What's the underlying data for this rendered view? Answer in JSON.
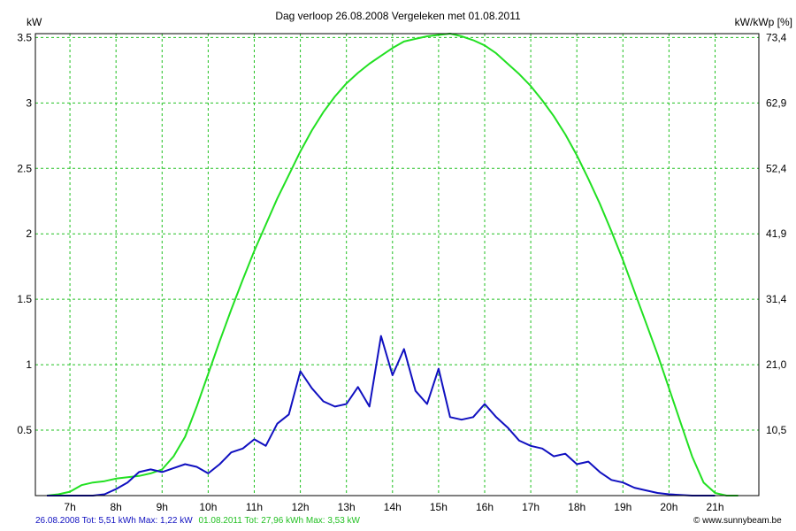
{
  "chart_data": {
    "type": "line",
    "title": "Dag  verloop 26.08.2008   Vergeleken met 01.08.2011",
    "ylabel_left": "kW",
    "ylabel_right": "kW/kWp [%]",
    "x_ticks": [
      "7h",
      "8h",
      "9h",
      "10h",
      "11h",
      "12h",
      "13h",
      "14h",
      "15h",
      "16h",
      "17h",
      "18h",
      "19h",
      "20h",
      "21h"
    ],
    "x_tick_values": [
      7,
      8,
      9,
      10,
      11,
      12,
      13,
      14,
      15,
      16,
      17,
      18,
      19,
      20,
      21
    ],
    "xlim": [
      6.25,
      21.95
    ],
    "y_ticks_left": [
      "0.5",
      "1",
      "1.5",
      "2",
      "2.5",
      "3",
      "3.5"
    ],
    "y_tick_values_left": [
      0.5,
      1,
      1.5,
      2,
      2.5,
      3,
      3.5
    ],
    "y_ticks_right": [
      "10,5",
      "21,0",
      "31,4",
      "41,9",
      "52,4",
      "62,9",
      "73,4"
    ],
    "ylim": [
      0,
      3.53
    ],
    "grid": true,
    "series": [
      {
        "name": "01.08.2011",
        "color": "#22e022",
        "x": [
          6.5,
          6.75,
          7.0,
          7.25,
          7.5,
          7.75,
          8.0,
          8.25,
          8.5,
          8.75,
          9.0,
          9.25,
          9.5,
          9.75,
          10.0,
          10.25,
          10.5,
          10.75,
          11.0,
          11.25,
          11.5,
          11.75,
          12.0,
          12.25,
          12.5,
          12.75,
          13.0,
          13.25,
          13.5,
          13.75,
          14.0,
          14.25,
          14.5,
          14.75,
          15.0,
          15.25,
          15.5,
          15.75,
          16.0,
          16.25,
          16.5,
          16.75,
          17.0,
          17.25,
          17.5,
          17.75,
          18.0,
          18.25,
          18.5,
          18.75,
          19.0,
          19.25,
          19.5,
          19.75,
          20.0,
          20.25,
          20.5,
          20.75,
          21.0,
          21.25,
          21.5
        ],
        "values": [
          0,
          0.01,
          0.03,
          0.08,
          0.1,
          0.11,
          0.13,
          0.14,
          0.15,
          0.17,
          0.2,
          0.3,
          0.45,
          0.68,
          0.93,
          1.18,
          1.42,
          1.65,
          1.87,
          2.07,
          2.27,
          2.45,
          2.63,
          2.79,
          2.93,
          3.05,
          3.15,
          3.23,
          3.3,
          3.36,
          3.42,
          3.47,
          3.49,
          3.51,
          3.52,
          3.53,
          3.51,
          3.48,
          3.44,
          3.38,
          3.3,
          3.22,
          3.13,
          3.02,
          2.9,
          2.76,
          2.6,
          2.42,
          2.23,
          2.02,
          1.8,
          1.56,
          1.32,
          1.08,
          0.82,
          0.56,
          0.3,
          0.1,
          0.02,
          0,
          0
        ]
      },
      {
        "name": "26.08.2008",
        "color": "#1010c0",
        "x": [
          6.5,
          7.0,
          7.5,
          7.75,
          8.0,
          8.25,
          8.5,
          8.75,
          9.0,
          9.25,
          9.5,
          9.75,
          10.0,
          10.25,
          10.5,
          10.75,
          11.0,
          11.25,
          11.5,
          11.75,
          12.0,
          12.25,
          12.5,
          12.75,
          13.0,
          13.25,
          13.5,
          13.75,
          14.0,
          14.25,
          14.5,
          14.75,
          15.0,
          15.25,
          15.5,
          15.75,
          16.0,
          16.25,
          16.5,
          16.75,
          17.0,
          17.25,
          17.5,
          17.75,
          18.0,
          18.25,
          18.5,
          18.75,
          19.0,
          19.25,
          19.5,
          19.75,
          20.0,
          20.5,
          21.0
        ],
        "values": [
          0,
          0,
          0,
          0.01,
          0.05,
          0.1,
          0.18,
          0.2,
          0.18,
          0.21,
          0.24,
          0.22,
          0.17,
          0.24,
          0.33,
          0.36,
          0.43,
          0.38,
          0.55,
          0.62,
          0.95,
          0.82,
          0.72,
          0.68,
          0.7,
          0.83,
          0.68,
          1.22,
          0.92,
          1.12,
          0.8,
          0.7,
          0.97,
          0.6,
          0.58,
          0.6,
          0.7,
          0.6,
          0.52,
          0.42,
          0.38,
          0.36,
          0.3,
          0.32,
          0.24,
          0.26,
          0.18,
          0.12,
          0.1,
          0.06,
          0.04,
          0.02,
          0.01,
          0,
          0
        ]
      }
    ],
    "legend": {
      "placement": "bottom",
      "entries": [
        {
          "text": "26.08.2008 Tot: 5,51 kWh Max: 1,22 kW",
          "color": "#1010c0"
        },
        {
          "text": "01.08.2011 Tot: 27,96 kWh Max: 3,53 kW",
          "color": "#22e022"
        }
      ]
    },
    "credit": "© www.sunnybeam.be"
  }
}
